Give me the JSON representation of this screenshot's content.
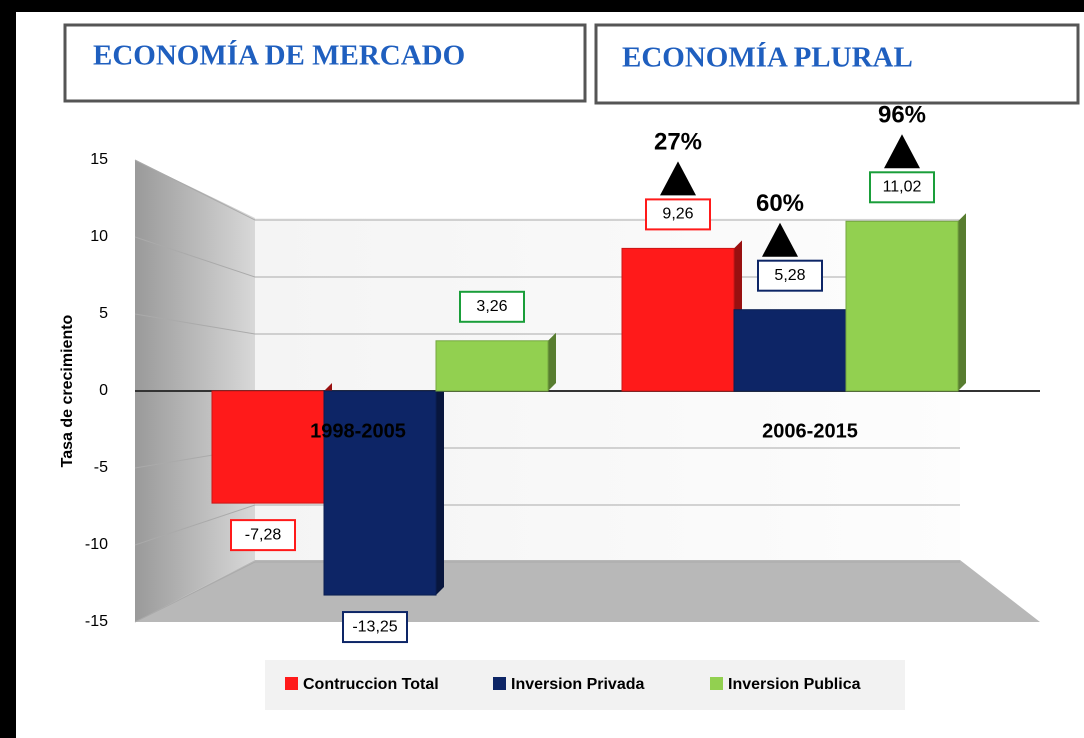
{
  "chart_data": {
    "type": "bar",
    "headers": [
      "ECONOMÍA DE MERCADO",
      "ECONOMÍA PLURAL"
    ],
    "ylabel": "Tasa de crecimiento",
    "categories": [
      "1998-2005",
      "2006-2015"
    ],
    "series": [
      {
        "name": "Contruccion Total",
        "color": "#ff1a1a",
        "values": [
          -7.28,
          9.26
        ],
        "value_labels": [
          "-7,28",
          "9,26"
        ]
      },
      {
        "name": "Inversion Privada",
        "color": "#0d2566",
        "values": [
          -13.25,
          5.28
        ],
        "value_labels": [
          "-13,25",
          "5,28"
        ]
      },
      {
        "name": "Inversion Publica",
        "color": "#92d050",
        "values": [
          3.26,
          11.02
        ],
        "value_labels": [
          "3,26",
          "11,02"
        ]
      }
    ],
    "annotations": [
      "27%",
      "60%",
      "96%"
    ],
    "ylim": [
      -15,
      15
    ],
    "yticks": [
      -15,
      -10,
      -5,
      0,
      5,
      10,
      15
    ],
    "grid": true,
    "legend": "bottom"
  }
}
